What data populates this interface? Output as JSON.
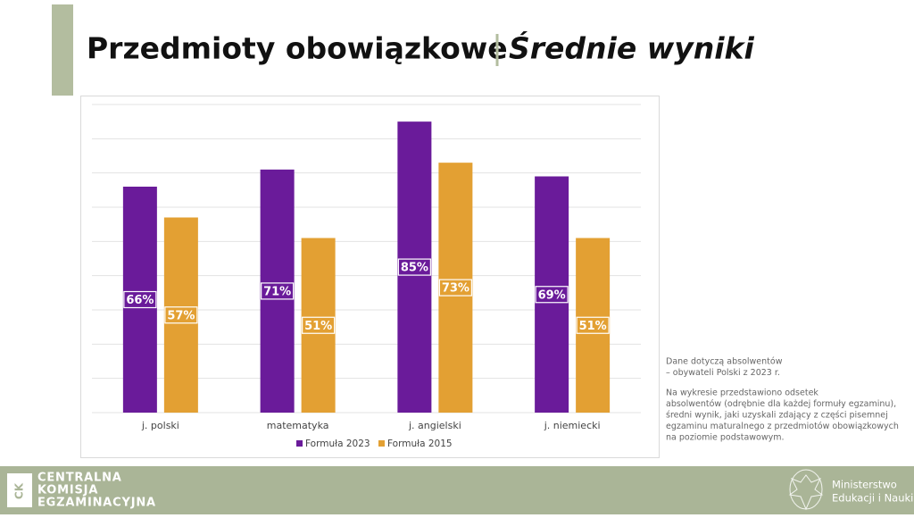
{
  "header": {
    "title": "Przedmioty obowiązkowe",
    "subtitle": "Średnie wyniki"
  },
  "chart_data": {
    "type": "bar",
    "categories": [
      "j. polski",
      "matematyka",
      "j. angielski",
      "j. niemiecki"
    ],
    "series": [
      {
        "name": "Formuła 2023",
        "color": "#6a1b9a",
        "values": [
          66,
          71,
          85,
          69
        ],
        "value_labels": [
          "66%",
          "71%",
          "85%",
          "69%"
        ]
      },
      {
        "name": "Formuła 2015",
        "color": "#e3a033",
        "values": [
          57,
          51,
          73,
          51
        ],
        "value_labels": [
          "57%",
          "51%",
          "73%",
          "51%"
        ]
      }
    ],
    "ylim": [
      0,
      90
    ],
    "yticks": [
      0,
      10,
      20,
      30,
      40,
      50,
      60,
      70,
      80,
      90
    ],
    "grid": true,
    "legend": "bottom"
  },
  "notes": [
    [
      "Dane dotyczą  absolwentów",
      "– obywateli Polski z 2023 r."
    ],
    [
      "Na wykresie przedstawiono odsetek",
      "absolwentów (odrębnie dla każdej formuły egzaminu),",
      "średni wynik, jaki uzyskali zdający z części pisemnej",
      "egzaminu maturalnego z przedmiotów obowiązkowych",
      "na poziomie podstawowym."
    ]
  ],
  "footer": {
    "logo_mark": "CK",
    "org_lines": [
      "CENTRALNA",
      "KOMISJA",
      "EGZAMINACYJNA"
    ],
    "ministry_lines": [
      "Ministerstwo",
      "Edukacji i Nauki"
    ]
  }
}
